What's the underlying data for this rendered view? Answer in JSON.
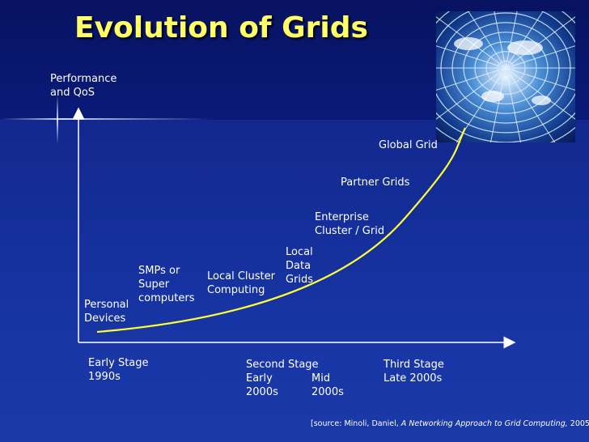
{
  "title": "Evolution of Grids",
  "y_axis_label": "Performance\nand QoS",
  "stages": [
    {
      "name": "Personal Devices",
      "text": "Personal\nDevices"
    },
    {
      "name": "SMPs or Super computers",
      "text": "SMPs or\nSuper\ncomputers"
    },
    {
      "name": "Local Cluster Computing",
      "text": "Local Cluster\nComputing"
    },
    {
      "name": "Local Data Grids",
      "text": "Local\nData\nGrids"
    },
    {
      "name": "Enterprise Cluster / Grid",
      "text": "Enterprise\nCluster / Grid"
    },
    {
      "name": "Partner Grids",
      "text": "Partner Grids"
    },
    {
      "name": "Global Grid",
      "text": "Global Grid"
    }
  ],
  "timeline": {
    "early": "Early Stage\n1990s",
    "second_stage": "Second Stage",
    "early_2000s": "Early\n2000s",
    "mid_2000s": "Mid\n2000s",
    "third": "Third Stage\nLate 2000s"
  },
  "source": {
    "prefix": "[source: Minoli, Daniel, ",
    "book": "A Networking Approach to Grid Computing,",
    "suffix": " 2005]"
  },
  "colors": {
    "title": "#ffff66",
    "curve": "#ffff33",
    "axis": "#ffffff",
    "text": "#ffffff"
  }
}
